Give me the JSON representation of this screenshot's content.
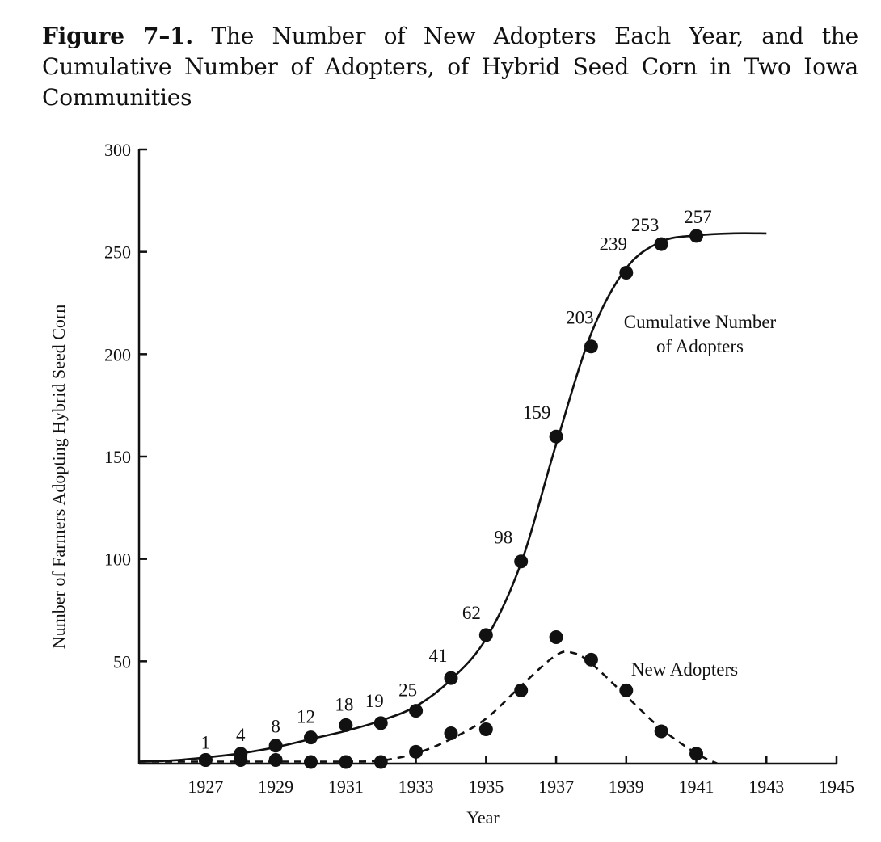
{
  "caption": {
    "label": "Figure 7–1.",
    "text": "The Number of New Adopters Each Year, and the Cumulative Number of Adopters, of Hybrid Seed Corn in Two Iowa Communities"
  },
  "chart_data": {
    "type": "line",
    "title": "Figure 7–1. The Number of New Adopters Each Year, and the Cumulative Number of Adopters, of Hybrid Seed Corn in Two Iowa Communities",
    "xlabel": "Year",
    "ylabel": "Number of Farmers Adopting Hybrid Seed Corn",
    "xlim": [
      1925.1,
      1945
    ],
    "ylim": [
      0,
      300
    ],
    "x_ticks": [
      1927,
      1929,
      1931,
      1933,
      1935,
      1937,
      1939,
      1941,
      1943,
      1945
    ],
    "y_ticks": [
      50,
      100,
      150,
      200,
      250,
      300
    ],
    "grid": false,
    "series": [
      {
        "name": "Cumulative Number of Adopters",
        "label_lines": [
          "Cumulative Number",
          "of Adopters"
        ],
        "style": "solid",
        "x": [
          1927,
          1928,
          1929,
          1930,
          1931,
          1932,
          1933,
          1934,
          1935,
          1936,
          1937,
          1938,
          1939,
          1940,
          1941
        ],
        "values": [
          1,
          4,
          8,
          12,
          18,
          19,
          25,
          41,
          62,
          98,
          159,
          203,
          239,
          253,
          257
        ],
        "data_labels": [
          "1",
          "4",
          "8",
          "12",
          "18",
          "19",
          "25",
          "41",
          "62",
          "98",
          "159",
          "203",
          "239",
          "253",
          "257"
        ],
        "curve_x": [
          1925.1,
          1926,
          1927,
          1928,
          1929,
          1930,
          1931,
          1932,
          1933,
          1934,
          1935,
          1936,
          1937,
          1938,
          1939,
          1940,
          1941,
          1942,
          1943
        ],
        "curve_y": [
          1,
          1.5,
          3,
          5,
          8,
          12,
          16,
          21,
          28,
          41,
          61,
          98,
          156,
          210,
          242,
          255,
          258,
          259,
          259
        ]
      },
      {
        "name": "New Adopters",
        "label_lines": [
          "New Adopters"
        ],
        "style": "dashed",
        "x": [
          1927,
          1928,
          1929,
          1930,
          1931,
          1932,
          1933,
          1934,
          1935,
          1936,
          1937,
          1938,
          1939,
          1940,
          1941
        ],
        "values": [
          1,
          1,
          1,
          0,
          0,
          0,
          5,
          14,
          16,
          35,
          61,
          50,
          35,
          15,
          4
        ],
        "curve_x": [
          1925.1,
          1926,
          1927,
          1928,
          1929,
          1930,
          1931,
          1932,
          1933,
          1934,
          1935,
          1936,
          1937,
          1937.5,
          1938,
          1939,
          1940,
          1941,
          1941.6
        ],
        "curve_y": [
          1,
          1,
          1,
          1,
          1,
          1,
          1,
          1.5,
          5,
          12,
          22,
          38,
          53,
          54,
          49,
          33,
          17,
          5,
          0
        ]
      }
    ]
  }
}
